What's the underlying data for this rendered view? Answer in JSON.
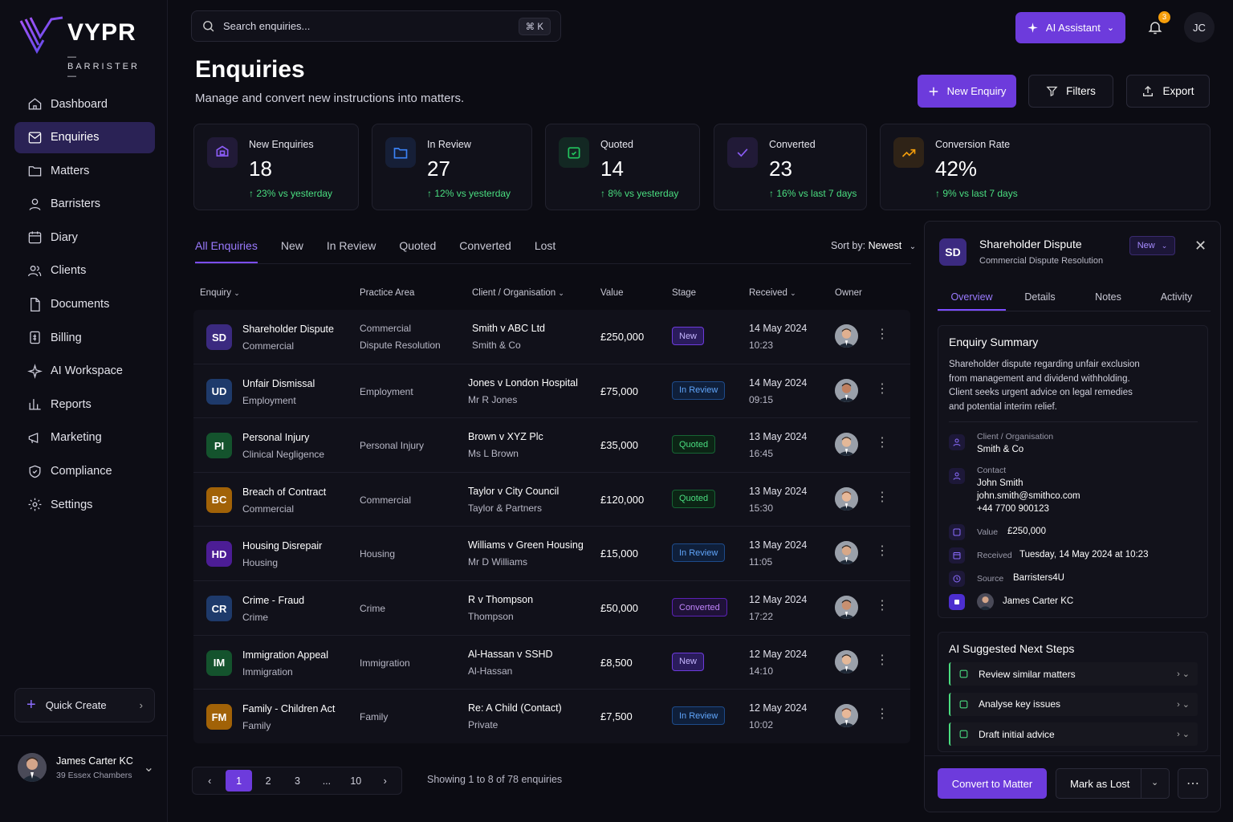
{
  "brand": {
    "name": "VYPR",
    "sub": "BARRISTER"
  },
  "nav": [
    {
      "label": "Dashboard",
      "icon": "home-icon"
    },
    {
      "label": "Enquiries",
      "icon": "inbox-icon",
      "active": true
    },
    {
      "label": "Matters",
      "icon": "folder-icon"
    },
    {
      "label": "Barristers",
      "icon": "person-icon"
    },
    {
      "label": "Diary",
      "icon": "calendar-icon"
    },
    {
      "label": "Clients",
      "icon": "people-icon"
    },
    {
      "label": "Documents",
      "icon": "document-icon"
    },
    {
      "label": "Billing",
      "icon": "billing-icon"
    },
    {
      "label": "AI Workspace",
      "icon": "sparkle-icon"
    },
    {
      "label": "Reports",
      "icon": "bar-chart-icon"
    },
    {
      "label": "Marketing",
      "icon": "megaphone-icon"
    },
    {
      "label": "Compliance",
      "icon": "shield-icon"
    },
    {
      "label": "Settings",
      "icon": "gear-icon"
    }
  ],
  "quick_create": "Quick Create",
  "user": {
    "name": "James Carter KC",
    "org": "39 Essex Chambers",
    "initials": "JC"
  },
  "search": {
    "placeholder": "Search enquiries...",
    "shortcut": "⌘  K"
  },
  "topbar": {
    "ai_label": "AI Assistant",
    "notifications": "3"
  },
  "page": {
    "title": "Enquiries",
    "subtitle": "Manage and convert new instructions into matters."
  },
  "actions": {
    "new": "New Enquiry",
    "filters": "Filters",
    "export": "Export"
  },
  "stats": [
    {
      "label": "New Enquiries",
      "value": "18",
      "trend": "23% vs yesterday",
      "color": "#8b5cf6"
    },
    {
      "label": "In Review",
      "value": "27",
      "trend": "12% vs yesterday",
      "color": "#3b82f6"
    },
    {
      "label": "Quoted",
      "value": "14",
      "trend": "8% vs yesterday",
      "color": "#22c55e"
    },
    {
      "label": "Converted",
      "value": "23",
      "trend": "16% vs last 7 days",
      "color": "#8b5cf6"
    },
    {
      "label": "Conversion Rate",
      "value": "42%",
      "trend": "9% vs last 7 days",
      "color": "#f59e0b"
    }
  ],
  "tabs": [
    "All Enquiries",
    "New",
    "In Review",
    "Quoted",
    "Converted",
    "Lost"
  ],
  "sort": {
    "label": "Sort by:",
    "value": "Newest"
  },
  "columns": [
    "Enquiry",
    "Practice Area",
    "Client / Organisation",
    "Value",
    "Stage",
    "Received",
    "Owner"
  ],
  "rows": [
    {
      "initials": "SD",
      "color": "#3b2a80",
      "title": "Shareholder Dispute",
      "sub": "Commercial",
      "area1": "Commercial",
      "area2": "Dispute Resolution",
      "client": "Smith v ABC Ltd",
      "org": "Smith & Co",
      "value": "£250,000",
      "stage": "New",
      "date": "14 May 2024",
      "time": "10:23"
    },
    {
      "initials": "UD",
      "color": "#1e3a6b",
      "title": "Unfair Dismissal",
      "sub": "Employment",
      "area1": "Employment",
      "area2": "",
      "client": "Jones v London Hospital",
      "org": "Mr R Jones",
      "value": "£75,000",
      "stage": "In Review",
      "date": "14 May 2024",
      "time": "09:15"
    },
    {
      "initials": "PI",
      "color": "#14532d",
      "title": "Personal Injury",
      "sub": "Clinical Negligence",
      "area1": "Personal Injury",
      "area2": "",
      "client": "Brown v XYZ Plc",
      "org": "Ms L Brown",
      "value": "£35,000",
      "stage": "Quoted",
      "date": "13 May 2024",
      "time": "16:45"
    },
    {
      "initials": "BC",
      "color": "#a16207",
      "title": "Breach of Contract",
      "sub": "Commercial",
      "area1": "Commercial",
      "area2": "",
      "client": "Taylor v City Council",
      "org": "Taylor & Partners",
      "value": "£120,000",
      "stage": "Quoted",
      "date": "13 May 2024",
      "time": "15:30"
    },
    {
      "initials": "HD",
      "color": "#4c1d95",
      "title": "Housing Disrepair",
      "sub": "Housing",
      "area1": "Housing",
      "area2": "",
      "client": "Williams v Green Housing",
      "org": "Mr D Williams",
      "value": "£15,000",
      "stage": "In Review",
      "date": "13 May 2024",
      "time": "11:05"
    },
    {
      "initials": "CR",
      "color": "#1e3a6b",
      "title": "Crime - Fraud",
      "sub": "Crime",
      "area1": "Crime",
      "area2": "",
      "client": "R v Thompson",
      "org": "Thompson",
      "value": "£50,000",
      "stage": "Converted",
      "date": "12 May 2024",
      "time": "17:22"
    },
    {
      "initials": "IM",
      "color": "#14532d",
      "title": "Immigration Appeal",
      "sub": "Immigration",
      "area1": "Immigration",
      "area2": "",
      "client": "Al-Hassan v SSHD",
      "org": "Al-Hassan",
      "value": "£8,500",
      "stage": "New",
      "date": "12 May 2024",
      "time": "14:10"
    },
    {
      "initials": "FM",
      "color": "#a16207",
      "title": "Family - Children Act",
      "sub": "Family",
      "area1": "Family",
      "area2": "",
      "client": "Re: A Child (Contact)",
      "org": "Private",
      "value": "£7,500",
      "stage": "In Review",
      "date": "12 May 2024",
      "time": "10:02"
    }
  ],
  "pagination": {
    "pages": [
      "1",
      "2",
      "3",
      "...",
      "10"
    ],
    "showing": "Showing 1 to 8 of 78 enquiries"
  },
  "panel": {
    "initials": "SD",
    "title": "Shareholder Dispute",
    "sub": "Commercial Dispute Resolution",
    "stage": "New",
    "tabs": [
      "Overview",
      "Details",
      "Notes",
      "Activity"
    ],
    "summary_title": "Enquiry Summary",
    "summary": "Shareholder dispute regarding unfair exclusion from management and dividend withholding. Client seeks urgent advice on legal remedies and potential interim relief.",
    "client_label": "Client / Organisation",
    "client_value": "Smith & Co",
    "contact_label": "Contact",
    "contact_name": "John Smith",
    "contact_email": "john.smith@smithco.com",
    "contact_phone": "+44 7700 900123",
    "value_label": "Value",
    "value": "£250,000",
    "received_label": "Received",
    "received": "Tuesday, 14 May 2024 at 10:23",
    "source_label": "Source",
    "source": "Barristers4U",
    "owner": "James Carter KC",
    "ai_title": "AI Suggested Next Steps",
    "ai_steps": [
      "Review similar matters",
      "Analyse key issues",
      "Draft initial advice"
    ],
    "convert": "Convert to Matter",
    "lost": "Mark as Lost"
  }
}
